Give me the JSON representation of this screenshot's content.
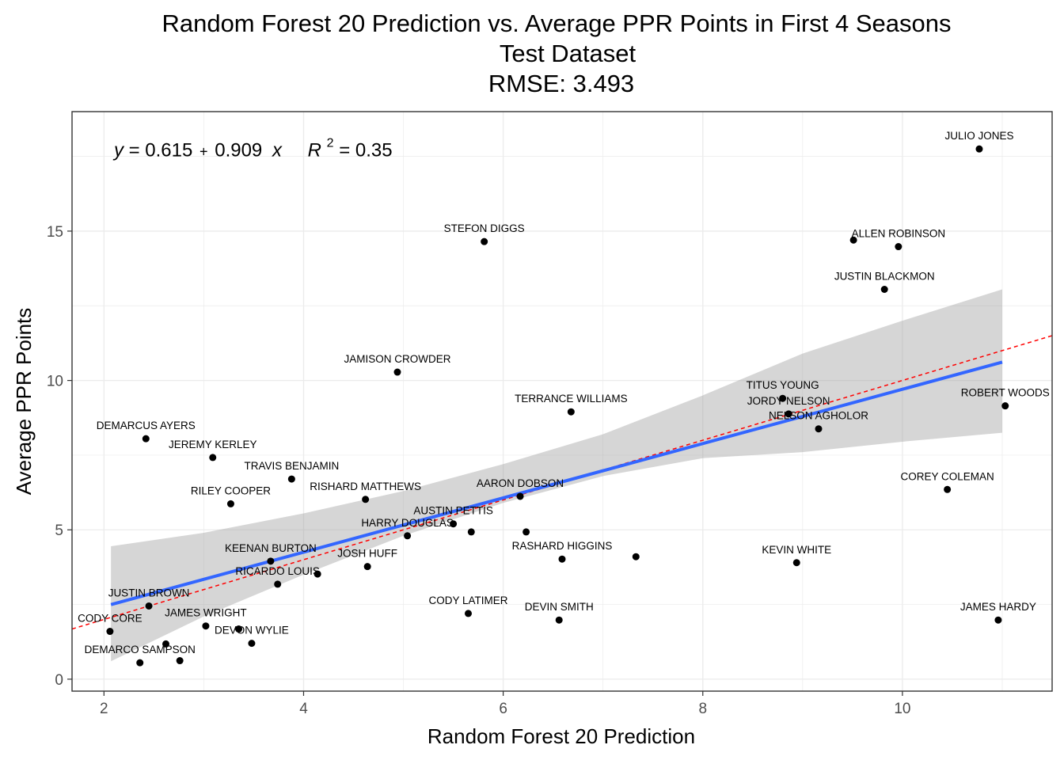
{
  "chart_data": {
    "type": "scatter",
    "title": [
      "Random Forest 20 Prediction vs. Average PPR Points in First 4 Seasons",
      "Test Dataset",
      "RMSE: 3.493"
    ],
    "xlabel": "Random Forest 20 Prediction",
    "ylabel": "Average PPR Points",
    "xlim": [
      1.68,
      11.5
    ],
    "ylim": [
      -0.4,
      19.0
    ],
    "xticks": [
      2,
      4,
      6,
      8,
      10
    ],
    "yticks": [
      0,
      5,
      10,
      15
    ],
    "xtick_labels": [
      "2",
      "4",
      "6",
      "8",
      "10"
    ],
    "ytick_labels": [
      "0",
      "5",
      "10",
      "15"
    ],
    "grid": true,
    "annotation": {
      "y_var": "y",
      "eq_left": " = 0.615",
      "plus": "+",
      "eq_mid": "0.909",
      "x_var": "x",
      "r_var": "R",
      "r_exp": "2",
      "r_val": " = 0.35",
      "anchor_x": 2.1,
      "anchor_y": 17.5
    },
    "fit": {
      "color": "#3366FF",
      "x_range": [
        2.07,
        11.0
      ],
      "intercept": 0.615,
      "slope": 0.909,
      "band_upper": [
        [
          2.07,
          4.45
        ],
        [
          3.0,
          4.9
        ],
        [
          4.0,
          5.55
        ],
        [
          5.0,
          6.3
        ],
        [
          6.0,
          7.2
        ],
        [
          7.0,
          8.2
        ],
        [
          8.0,
          9.5
        ],
        [
          9.0,
          10.9
        ],
        [
          10.0,
          12.0
        ],
        [
          11.0,
          13.05
        ]
      ],
      "band_lower": [
        [
          2.07,
          0.6
        ],
        [
          3.0,
          2.1
        ],
        [
          4.0,
          3.5
        ],
        [
          5.0,
          4.8
        ],
        [
          6.0,
          5.9
        ],
        [
          7.0,
          6.8
        ],
        [
          8.0,
          7.4
        ],
        [
          9.0,
          7.6
        ],
        [
          10.0,
          7.95
        ],
        [
          11.0,
          8.25
        ]
      ]
    },
    "reference_line": {
      "color": "#ff0000",
      "style": "dashed",
      "intercept": 0,
      "slope": 1
    },
    "points": [
      {
        "x": 10.77,
        "y": 17.75,
        "label": "JULIO JONES"
      },
      {
        "x": 5.81,
        "y": 14.65,
        "label": "STEFON DIGGS"
      },
      {
        "x": 9.51,
        "y": 14.7,
        "label": "ALLEN ROBINSON"
      },
      {
        "x": 9.96,
        "y": 14.48,
        "label": "ALLEN ROBINSON"
      },
      {
        "x": 9.82,
        "y": 13.05,
        "label": "JUSTIN BLACKMON"
      },
      {
        "x": 4.94,
        "y": 10.28,
        "label": "JAMISON CROWDER"
      },
      {
        "x": 8.8,
        "y": 9.4,
        "label": "TITUS YOUNG"
      },
      {
        "x": 11.03,
        "y": 9.15,
        "label": "ROBERT WOODS"
      },
      {
        "x": 6.68,
        "y": 8.95,
        "label": "TERRANCE WILLIAMS"
      },
      {
        "x": 8.86,
        "y": 8.88,
        "label": "JORDY NELSON"
      },
      {
        "x": 9.16,
        "y": 8.38,
        "label": "NELSON AGHOLOR"
      },
      {
        "x": 2.42,
        "y": 8.05,
        "label": "DEMARCUS AYERS"
      },
      {
        "x": 3.09,
        "y": 7.42,
        "label": "JEREMY KERLEY"
      },
      {
        "x": 3.88,
        "y": 6.7,
        "label": "TRAVIS BENJAMIN"
      },
      {
        "x": 10.45,
        "y": 6.35,
        "label": "COREY COLEMAN"
      },
      {
        "x": 6.17,
        "y": 6.12,
        "label": "AARON DOBSON"
      },
      {
        "x": 4.62,
        "y": 6.02,
        "label": "RISHARD MATTHEWS"
      },
      {
        "x": 3.27,
        "y": 5.87,
        "label": "RILEY COOPER"
      },
      {
        "x": 5.5,
        "y": 5.2,
        "label": "AUSTIN PETTIS"
      },
      {
        "x": 6.23,
        "y": 4.93,
        "label": "AUSTIN PETTIS"
      },
      {
        "x": 5.68,
        "y": 4.93,
        "label": "HARRY DOUGLAS"
      },
      {
        "x": 5.04,
        "y": 4.8,
        "label": "HARRY DOUGLAS"
      },
      {
        "x": 7.33,
        "y": 4.1,
        "label": "RASHARD HIGGINS"
      },
      {
        "x": 6.59,
        "y": 4.02,
        "label": "RASHARD HIGGINS"
      },
      {
        "x": 3.67,
        "y": 3.95,
        "label": "KEENAN BURTON"
      },
      {
        "x": 8.94,
        "y": 3.9,
        "label": "KEVIN WHITE"
      },
      {
        "x": 4.64,
        "y": 3.77,
        "label": "JOSH HUFF"
      },
      {
        "x": 4.14,
        "y": 3.52,
        "label": "JOSH HUFF"
      },
      {
        "x": 3.74,
        "y": 3.18,
        "label": "RICARDO LOUIS"
      },
      {
        "x": 2.45,
        "y": 2.45,
        "label": "JUSTIN BROWN"
      },
      {
        "x": 5.65,
        "y": 2.2,
        "label": "CODY LATIMER"
      },
      {
        "x": 6.56,
        "y": 1.98,
        "label": "DEVIN SMITH"
      },
      {
        "x": 10.96,
        "y": 1.98,
        "label": "JAMES HARDY"
      },
      {
        "x": 3.02,
        "y": 1.78,
        "label": "JAMES WRIGHT"
      },
      {
        "x": 3.35,
        "y": 1.68,
        "label": "DEVON WYLIE"
      },
      {
        "x": 2.06,
        "y": 1.6,
        "label": "CODY CORE"
      },
      {
        "x": 3.48,
        "y": 1.2,
        "label": "DEVON WYLIE"
      },
      {
        "x": 2.62,
        "y": 1.18,
        "label": "DEMARCO SAMPSON"
      },
      {
        "x": 2.76,
        "y": 0.62,
        "label": "DEMARCO SAMPSON"
      },
      {
        "x": 2.36,
        "y": 0.55,
        "label": "DEMARCO SAMPSON"
      }
    ],
    "labels": [
      {
        "text": "JULIO JONES",
        "x": 10.77,
        "y": 17.75
      },
      {
        "text": "STEFON DIGGS",
        "x": 5.81,
        "y": 14.65
      },
      {
        "text": "ALLEN ROBINSON",
        "x": 9.96,
        "y": 14.48
      },
      {
        "text": "JUSTIN BLACKMON",
        "x": 9.82,
        "y": 13.05
      },
      {
        "text": "JAMISON CROWDER",
        "x": 4.94,
        "y": 10.28
      },
      {
        "text": "TITUS YOUNG",
        "x": 8.8,
        "y": 9.4
      },
      {
        "text": "ROBERT WOODS",
        "x": 11.03,
        "y": 9.15
      },
      {
        "text": "TERRANCE WILLIAMS",
        "x": 6.68,
        "y": 8.95
      },
      {
        "text": "JORDY NELSON",
        "x": 8.86,
        "y": 8.88
      },
      {
        "text": "NELSON AGHOLOR",
        "x": 9.16,
        "y": 8.38
      },
      {
        "text": "DEMARCUS AYERS",
        "x": 2.42,
        "y": 8.05
      },
      {
        "text": "JEREMY KERLEY",
        "x": 3.09,
        "y": 7.42
      },
      {
        "text": "TRAVIS BENJAMIN",
        "x": 3.88,
        "y": 6.7
      },
      {
        "text": "COREY COLEMAN",
        "x": 10.45,
        "y": 6.35
      },
      {
        "text": "AARON DOBSON",
        "x": 6.17,
        "y": 6.12
      },
      {
        "text": "RISHARD MATTHEWS",
        "x": 4.62,
        "y": 6.02
      },
      {
        "text": "RILEY COOPER",
        "x": 3.27,
        "y": 5.87
      },
      {
        "text": "AUSTIN PETTIS",
        "x": 5.5,
        "y": 5.2
      },
      {
        "text": "HARRY DOUGLAS",
        "x": 5.04,
        "y": 4.8
      },
      {
        "text": "RASHARD HIGGINS",
        "x": 6.59,
        "y": 4.02
      },
      {
        "text": "KEENAN BURTON",
        "x": 3.67,
        "y": 3.95
      },
      {
        "text": "KEVIN WHITE",
        "x": 8.94,
        "y": 3.9
      },
      {
        "text": "JOSH HUFF",
        "x": 4.64,
        "y": 3.77
      },
      {
        "text": "RICARDO LOUIS",
        "x": 3.74,
        "y": 3.18
      },
      {
        "text": "JUSTIN BROWN",
        "x": 2.45,
        "y": 2.45
      },
      {
        "text": "CODY LATIMER",
        "x": 5.65,
        "y": 2.2
      },
      {
        "text": "DEVIN SMITH",
        "x": 6.56,
        "y": 1.98
      },
      {
        "text": "JAMES HARDY",
        "x": 10.96,
        "y": 1.98
      },
      {
        "text": "JAMES WRIGHT",
        "x": 3.02,
        "y": 1.78
      },
      {
        "text": "DEVON WYLIE",
        "x": 3.48,
        "y": 1.2
      },
      {
        "text": "CODY CORE",
        "x": 2.06,
        "y": 1.6
      },
      {
        "text": "DEMARCO SAMPSON",
        "x": 2.36,
        "y": 0.55
      }
    ]
  }
}
